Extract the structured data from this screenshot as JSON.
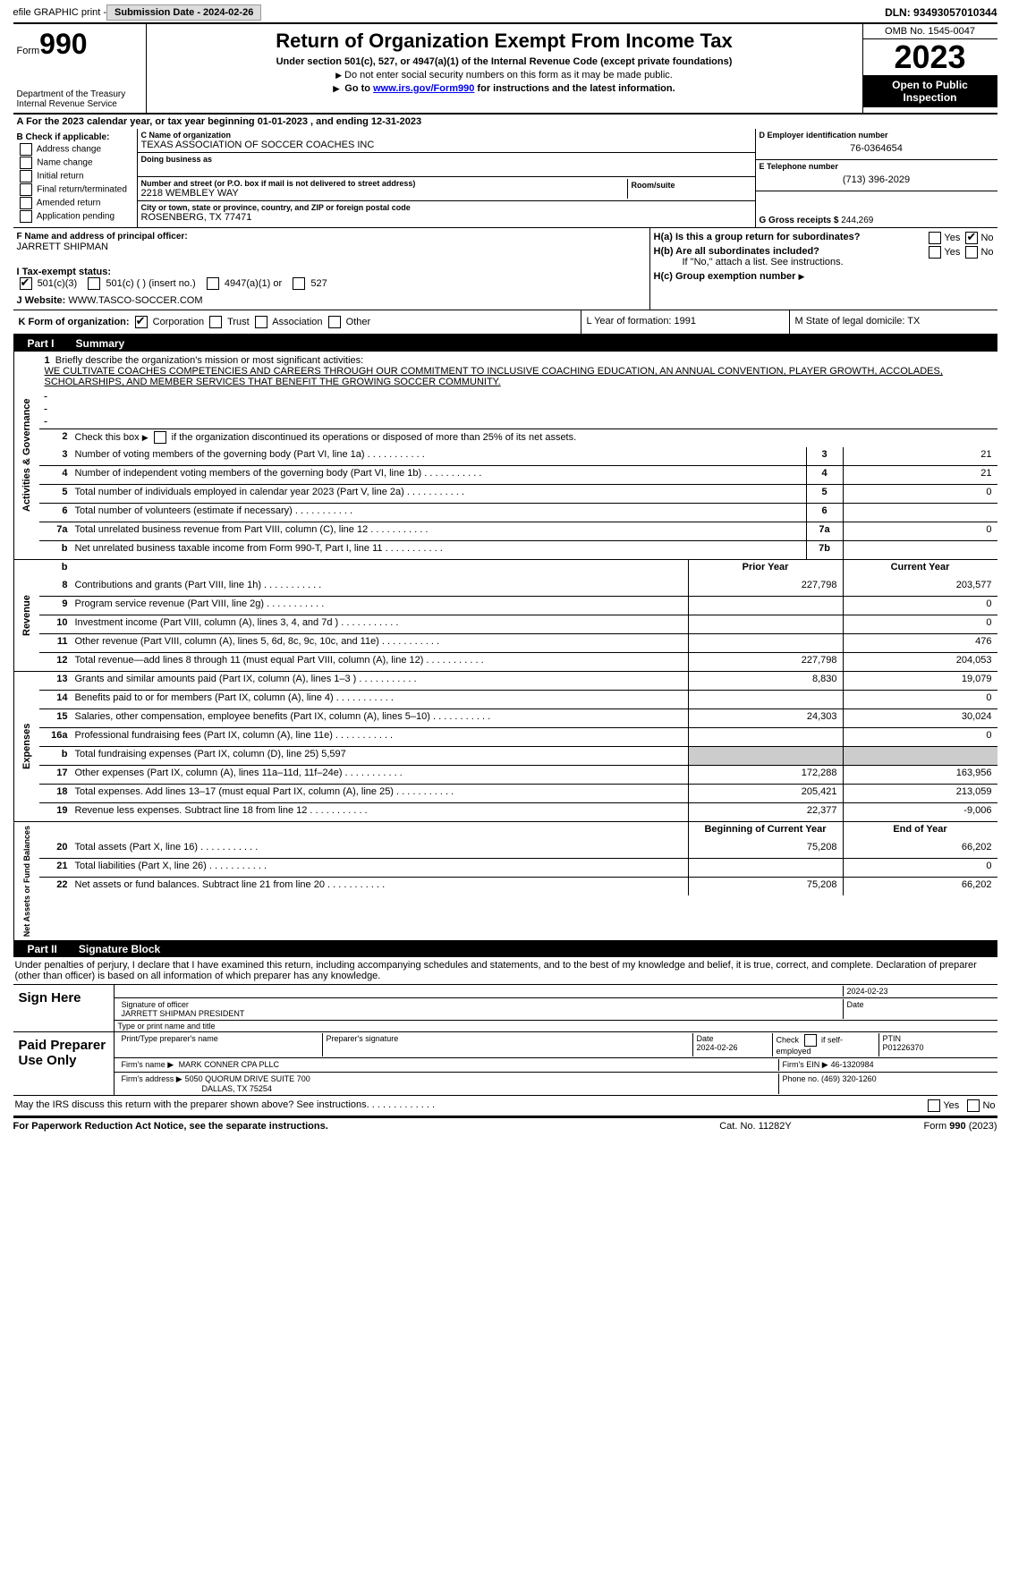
{
  "topbar": {
    "efile": "efile GRAPHIC print -",
    "sub_label": "Submission Date - 2024-02-26",
    "dln": "DLN: 93493057010344"
  },
  "header": {
    "form_label": "Form",
    "form_num": "990",
    "dept": "Department of the Treasury\nInternal Revenue Service",
    "title": "Return of Organization Exempt From Income Tax",
    "sub1": "Under section 501(c), 527, or 4947(a)(1) of the Internal Revenue Code (except private foundations)",
    "sub2": "Do not enter social security numbers on this form as it may be made public.",
    "sub3_pre": "Go to ",
    "sub3_link": "www.irs.gov/Form990",
    "sub3_post": " for instructions and the latest information.",
    "omb": "OMB No. 1545-0047",
    "year": "2023",
    "inspect": "Open to Public Inspection"
  },
  "rowA": "A For the 2023 calendar year, or tax year beginning 01-01-2023   , and ending 12-31-2023",
  "colB": {
    "lbl": "B Check if applicable:",
    "o1": "Address change",
    "o2": "Name change",
    "o3": "Initial return",
    "o4": "Final return/terminated",
    "o5": "Amended return",
    "o6": "Application pending"
  },
  "colC": {
    "name_lbl": "C Name of organization",
    "name": "TEXAS ASSOCIATION OF SOCCER COACHES INC",
    "dba_lbl": "Doing business as",
    "street_lbl": "Number and street (or P.O. box if mail is not delivered to street address)",
    "street": "2218 WEMBLEY WAY",
    "room_lbl": "Room/suite",
    "city_lbl": "City or town, state or province, country, and ZIP or foreign postal code",
    "city": "ROSENBERG, TX  77471",
    "officer_lbl": "F Name and address of principal officer:",
    "officer": "JARRETT SHIPMAN"
  },
  "colD": {
    "ein_lbl": "D Employer identification number",
    "ein": "76-0364654",
    "tel_lbl": "E Telephone number",
    "tel": "(713) 396-2029",
    "gross_lbl": "G Gross receipts $",
    "gross": "244,269"
  },
  "rowH": {
    "ha": "H(a)  Is this a group return for subordinates?",
    "hb": "H(b)  Are all subordinates included?",
    "hb_note": "If \"No,\" attach a list. See instructions.",
    "hc": "H(c)  Group exemption number ",
    "yes": "Yes",
    "no": "No"
  },
  "rowI": {
    "lbl": "I    Tax-exempt status:",
    "o1": "501(c)(3)",
    "o2": "501(c) (  ) (insert no.)",
    "o3": "4947(a)(1) or",
    "o4": "527"
  },
  "rowJ": {
    "lbl": "J    Website: ",
    "val": "WWW.TASCO-SOCCER.COM"
  },
  "rowK": {
    "k1_lbl": "K Form of organization:",
    "k1_o1": "Corporation",
    "k1_o2": "Trust",
    "k1_o3": "Association",
    "k1_o4": "Other",
    "k2": "L Year of formation: 1991",
    "k3": "M State of legal domicile: TX"
  },
  "part1": {
    "pnum": "Part I",
    "ptitle": "Summary",
    "q1_lbl": "Briefly describe the organization's mission or most significant activities:",
    "q1_val": "WE CULTIVATE COACHES COMPETENCIES AND CAREERS THROUGH OUR COMMITMENT TO INCLUSIVE COACHING EDUCATION, AN ANNUAL CONVENTION, PLAYER GROWTH, ACCOLADES, SCHOLARSHIPS, AND MEMBER SERVICES THAT BENEFIT THE GROWING SOCCER COMMUNITY.",
    "q2": "Check this box       if the organization discontinued its operations or disposed of more than 25% of its net assets."
  },
  "gov": {
    "label": "Activities & Governance",
    "rows": [
      {
        "n": "3",
        "d": "Number of voting members of the governing body (Part VI, line 1a)",
        "box": "3",
        "v": "21"
      },
      {
        "n": "4",
        "d": "Number of independent voting members of the governing body (Part VI, line 1b)",
        "box": "4",
        "v": "21"
      },
      {
        "n": "5",
        "d": "Total number of individuals employed in calendar year 2023 (Part V, line 2a)",
        "box": "5",
        "v": "0"
      },
      {
        "n": "6",
        "d": "Total number of volunteers (estimate if necessary)",
        "box": "6",
        "v": ""
      },
      {
        "n": "7a",
        "d": "Total unrelated business revenue from Part VIII, column (C), line 12",
        "box": "7a",
        "v": "0"
      },
      {
        "n": "b",
        "d": "Net unrelated business taxable income from Form 990-T, Part I, line 11",
        "box": "7b",
        "v": ""
      }
    ]
  },
  "hdr2": {
    "c1": "Prior Year",
    "c2": "Current Year"
  },
  "rev": {
    "label": "Revenue",
    "rows": [
      {
        "n": "8",
        "d": "Contributions and grants (Part VIII, line 1h)",
        "py": "227,798",
        "cy": "203,577"
      },
      {
        "n": "9",
        "d": "Program service revenue (Part VIII, line 2g)",
        "py": "",
        "cy": "0"
      },
      {
        "n": "10",
        "d": "Investment income (Part VIII, column (A), lines 3, 4, and 7d )",
        "py": "",
        "cy": "0"
      },
      {
        "n": "11",
        "d": "Other revenue (Part VIII, column (A), lines 5, 6d, 8c, 9c, 10c, and 11e)",
        "py": "",
        "cy": "476"
      },
      {
        "n": "12",
        "d": "Total revenue—add lines 8 through 11 (must equal Part VIII, column (A), line 12)",
        "py": "227,798",
        "cy": "204,053"
      }
    ]
  },
  "exp": {
    "label": "Expenses",
    "rows": [
      {
        "n": "13",
        "d": "Grants and similar amounts paid (Part IX, column (A), lines 1–3 )",
        "py": "8,830",
        "cy": "19,079"
      },
      {
        "n": "14",
        "d": "Benefits paid to or for members (Part IX, column (A), line 4)",
        "py": "",
        "cy": "0"
      },
      {
        "n": "15",
        "d": "Salaries, other compensation, employee benefits (Part IX, column (A), lines 5–10)",
        "py": "24,303",
        "cy": "30,024"
      },
      {
        "n": "16a",
        "d": "Professional fundraising fees (Part IX, column (A), line 11e)",
        "py": "",
        "cy": "0"
      },
      {
        "n": "b",
        "d": "Total fundraising expenses (Part IX, column (D), line 25) 5,597",
        "py": null,
        "cy": null
      },
      {
        "n": "17",
        "d": "Other expenses (Part IX, column (A), lines 11a–11d, 11f–24e)",
        "py": "172,288",
        "cy": "163,956"
      },
      {
        "n": "18",
        "d": "Total expenses. Add lines 13–17 (must equal Part IX, column (A), line 25)",
        "py": "205,421",
        "cy": "213,059"
      },
      {
        "n": "19",
        "d": "Revenue less expenses. Subtract line 18 from line 12",
        "py": "22,377",
        "cy": "-9,006"
      }
    ]
  },
  "hdr3": {
    "c1": "Beginning of Current Year",
    "c2": "End of Year"
  },
  "net": {
    "label": "Net Assets or Fund Balances",
    "rows": [
      {
        "n": "20",
        "d": "Total assets (Part X, line 16)",
        "py": "75,208",
        "cy": "66,202"
      },
      {
        "n": "21",
        "d": "Total liabilities (Part X, line 26)",
        "py": "",
        "cy": "0"
      },
      {
        "n": "22",
        "d": "Net assets or fund balances. Subtract line 21 from line 20",
        "py": "75,208",
        "cy": "66,202"
      }
    ]
  },
  "part2": {
    "pnum": "Part II",
    "ptitle": "Signature Block",
    "decl": "Under penalties of perjury, I declare that I have examined this return, including accompanying schedules and statements, and to the best of my knowledge and belief, it is true, correct, and complete. Declaration of preparer (other than officer) is based on all information of which preparer has any knowledge."
  },
  "sign": {
    "lbl": "Sign Here",
    "sig_lbl": "Signature of officer",
    "date_lbl": "Date",
    "date_val": "2024-02-23",
    "name": "JARRETT SHIPMAN PRESIDENT",
    "name_lbl": "Type or print name and title"
  },
  "paid": {
    "lbl": "Paid Preparer Use Only",
    "prep_name_lbl": "Print/Type preparer's name",
    "prep_sig_lbl": "Preparer's signature",
    "prep_date_lbl": "Date",
    "prep_date": "2024-02-26",
    "self_lbl": "Check       if self-employed",
    "ptin_lbl": "PTIN",
    "ptin": "P01226370",
    "firm_name_lbl": "Firm's name    ",
    "firm_name": "MARK CONNER CPA PLLC",
    "firm_ein_lbl": "Firm's EIN  ",
    "firm_ein": "46-1320984",
    "firm_addr_lbl": "Firm's address ",
    "firm_addr": "5050 QUORUM DRIVE SUITE 700",
    "firm_city": "DALLAS, TX  75254",
    "phone_lbl": "Phone no. ",
    "phone": "(469) 320-1260",
    "discuss": "May the IRS discuss this return with the preparer shown above? See instructions."
  },
  "footer": {
    "f1": "For Paperwork Reduction Act Notice, see the separate instructions.",
    "f2": "Cat. No. 11282Y",
    "f3": "Form 990 (2023)"
  }
}
